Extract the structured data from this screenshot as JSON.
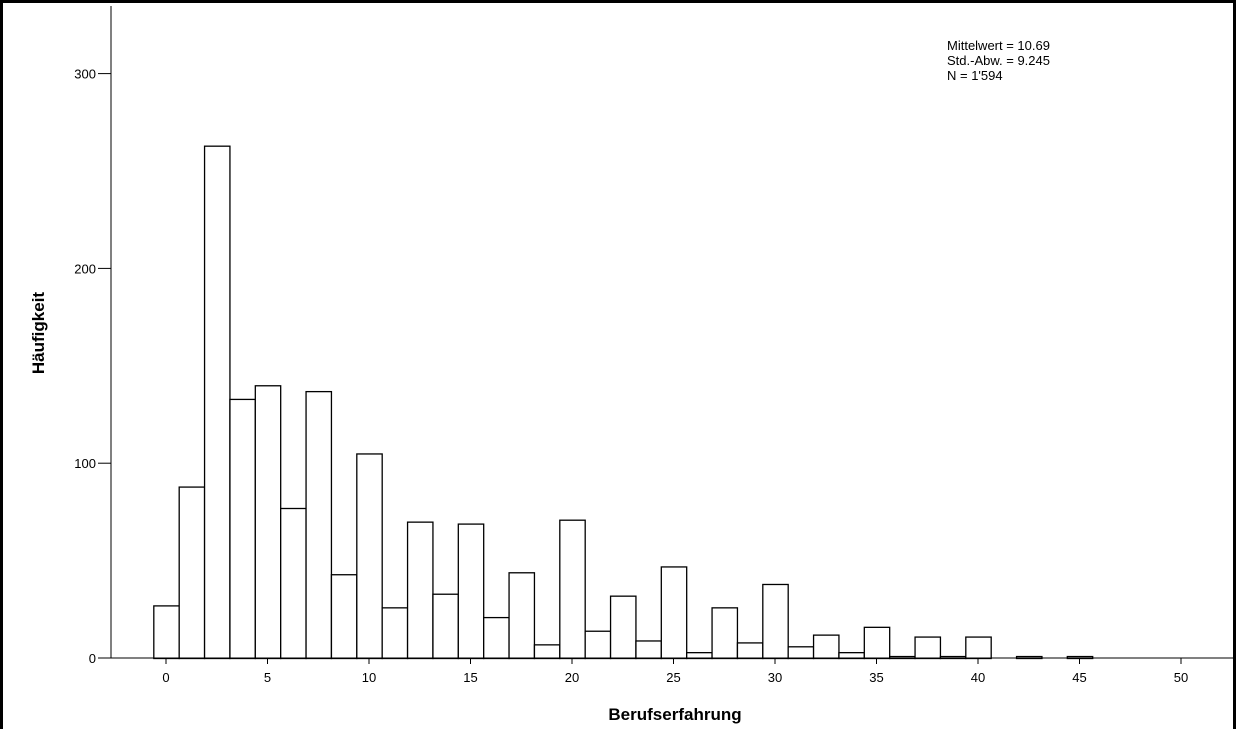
{
  "chart_data": {
    "type": "bar",
    "xlabel": "Berufserfahrung",
    "ylabel": "Häufigkeit",
    "xlim": [
      -1.5,
      52.5
    ],
    "ylim": [
      0,
      330
    ],
    "x_ticks": [
      0,
      5,
      10,
      15,
      20,
      25,
      30,
      35,
      40,
      45,
      50
    ],
    "y_ticks": [
      0,
      100,
      200,
      300
    ],
    "bin_width": 1.25,
    "bin_start": -0.625,
    "values": [
      27,
      88,
      263,
      133,
      140,
      77,
      137,
      43,
      105,
      26,
      70,
      33,
      69,
      21,
      44,
      7,
      71,
      14,
      32,
      9,
      47,
      3,
      26,
      8,
      38,
      6,
      12,
      3,
      16,
      1,
      11,
      1,
      11,
      0,
      1,
      0,
      1,
      0
    ],
    "grid": false,
    "bar_fill": "#ffffff",
    "bar_stroke": "#000000",
    "stats": [
      "Mittelwert = 10.69",
      "Std.-Abw. = 9.245",
      "N = 1'594"
    ]
  }
}
